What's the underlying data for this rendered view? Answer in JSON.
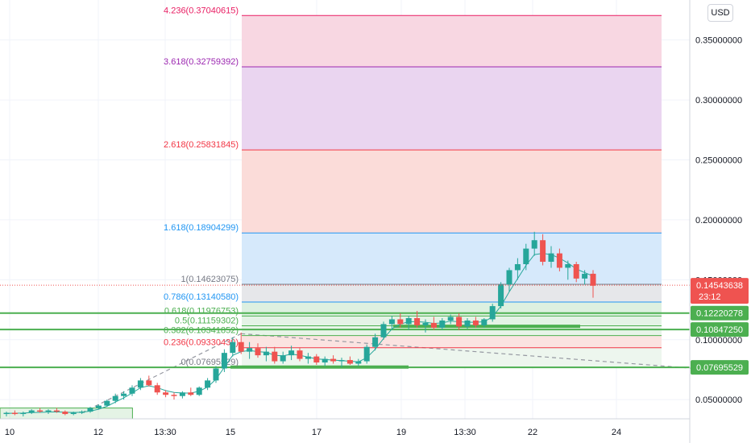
{
  "currency": "USD",
  "chart_data": {
    "type": "candlestick",
    "price_axis": {
      "ylim": [
        0.034,
        0.38
      ],
      "ticks": [
        "0.35000000",
        "0.30000000",
        "0.25000000",
        "0.20000000",
        "0.15000000",
        "0.10000000",
        "0.05000000"
      ],
      "tick_values": [
        0.35,
        0.3,
        0.25,
        0.2,
        0.15,
        0.1,
        0.05
      ]
    },
    "time_axis": {
      "labels": [
        "10",
        "12",
        "13:30",
        "15",
        "17",
        "19",
        "13:30",
        "22",
        "24"
      ]
    },
    "current_price": {
      "price": "0.14543638",
      "countdown": "23:12",
      "value": 0.14543638,
      "color": "#ef5350"
    },
    "horizontal_levels": [
      {
        "label": "0.12220278",
        "value": 0.12220278
      },
      {
        "label": "0.10847250",
        "value": 0.1084725
      },
      {
        "label": "0.07695529",
        "value": 0.07695529
      }
    ],
    "fibonacci": [
      {
        "label": "4.236(0.37040615)",
        "value": 0.37040615,
        "color": "#e91e63"
      },
      {
        "label": "3.618(0.32759392)",
        "value": 0.32759392,
        "color": "#9c27b0"
      },
      {
        "label": "2.618(0.25831845)",
        "value": 0.25831845,
        "color": "#f23645"
      },
      {
        "label": "1.618(0.18904299)",
        "value": 0.18904299,
        "color": "#2196f3"
      },
      {
        "label": "1(0.14623075)",
        "value": 0.14623075,
        "color": "#787b86"
      },
      {
        "label": "0.786(0.13140580)",
        "value": 0.1314058,
        "color": "#2196f3"
      },
      {
        "label": "0.618(0.11976753)",
        "value": 0.11976753,
        "color": "#4caf50"
      },
      {
        "label": "0.5(0.11159302)",
        "value": 0.11159302,
        "color": "#4caf50"
      },
      {
        "label": "0.382(0.10341852)",
        "value": 0.10341852,
        "color": "#4caf50"
      },
      {
        "label": "0.236(0.09330430)",
        "value": 0.0933043,
        "color": "#f23645"
      },
      {
        "label": "0(0.07695529)",
        "value": 0.07695529,
        "color": "#787b86"
      }
    ],
    "fill_colors": {
      "4.236": "#f8d7e2",
      "3.618": "#ead5f0",
      "2.618": "#fbdcd9",
      "1.618": "#d6e9fb",
      "1": "#e6e7ea",
      "0.786": "#ddf0e0",
      "0.618": "#e4f3e6",
      "0.5": "#e7f4e8",
      "0.382": "#fbe3e1",
      "0.236": "#edf6ee"
    },
    "candles": [
      [
        0.038,
        0.04,
        0.036,
        0.039
      ],
      [
        0.039,
        0.041,
        0.037,
        0.038
      ],
      [
        0.038,
        0.04,
        0.036,
        0.039
      ],
      [
        0.039,
        0.042,
        0.038,
        0.041
      ],
      [
        0.041,
        0.043,
        0.039,
        0.04
      ],
      [
        0.04,
        0.042,
        0.038,
        0.041
      ],
      [
        0.041,
        0.043,
        0.039,
        0.04
      ],
      [
        0.04,
        0.041,
        0.037,
        0.038
      ],
      [
        0.038,
        0.04,
        0.037,
        0.039
      ],
      [
        0.039,
        0.041,
        0.038,
        0.04
      ],
      [
        0.04,
        0.044,
        0.039,
        0.043
      ],
      [
        0.043,
        0.046,
        0.042,
        0.045
      ],
      [
        0.045,
        0.05,
        0.044,
        0.049
      ],
      [
        0.049,
        0.055,
        0.047,
        0.053
      ],
      [
        0.053,
        0.057,
        0.05,
        0.055
      ],
      [
        0.055,
        0.062,
        0.053,
        0.06
      ],
      [
        0.06,
        0.068,
        0.058,
        0.066
      ],
      [
        0.066,
        0.07,
        0.061,
        0.062
      ],
      [
        0.062,
        0.064,
        0.054,
        0.056
      ],
      [
        0.056,
        0.058,
        0.052,
        0.054
      ],
      [
        0.054,
        0.056,
        0.05,
        0.053
      ],
      [
        0.053,
        0.057,
        0.051,
        0.056
      ],
      [
        0.056,
        0.06,
        0.053,
        0.054
      ],
      [
        0.054,
        0.061,
        0.053,
        0.06
      ],
      [
        0.06,
        0.068,
        0.058,
        0.066
      ],
      [
        0.066,
        0.078,
        0.064,
        0.076
      ],
      [
        0.076,
        0.092,
        0.073,
        0.089
      ],
      [
        0.089,
        0.102,
        0.086,
        0.098
      ],
      [
        0.098,
        0.106,
        0.088,
        0.09
      ],
      [
        0.09,
        0.098,
        0.084,
        0.093
      ],
      [
        0.093,
        0.097,
        0.085,
        0.087
      ],
      [
        0.087,
        0.094,
        0.082,
        0.09
      ],
      [
        0.09,
        0.094,
        0.08,
        0.082
      ],
      [
        0.082,
        0.09,
        0.08,
        0.087
      ],
      [
        0.087,
        0.095,
        0.083,
        0.091
      ],
      [
        0.091,
        0.093,
        0.082,
        0.084
      ],
      [
        0.084,
        0.089,
        0.08,
        0.086
      ],
      [
        0.086,
        0.088,
        0.079,
        0.081
      ],
      [
        0.081,
        0.086,
        0.078,
        0.084
      ],
      [
        0.084,
        0.087,
        0.08,
        0.082
      ],
      [
        0.082,
        0.085,
        0.077,
        0.083
      ],
      [
        0.083,
        0.086,
        0.079,
        0.08
      ],
      [
        0.08,
        0.084,
        0.078,
        0.082
      ],
      [
        0.082,
        0.096,
        0.08,
        0.094
      ],
      [
        0.094,
        0.105,
        0.091,
        0.102
      ],
      [
        0.102,
        0.115,
        0.1,
        0.113
      ],
      [
        0.113,
        0.12,
        0.108,
        0.117
      ],
      [
        0.117,
        0.122,
        0.11,
        0.113
      ],
      [
        0.113,
        0.12,
        0.108,
        0.118
      ],
      [
        0.118,
        0.124,
        0.11,
        0.112
      ],
      [
        0.112,
        0.117,
        0.106,
        0.114
      ],
      [
        0.114,
        0.119,
        0.108,
        0.11
      ],
      [
        0.11,
        0.118,
        0.108,
        0.116
      ],
      [
        0.116,
        0.121,
        0.113,
        0.119
      ],
      [
        0.119,
        0.122,
        0.108,
        0.111
      ],
      [
        0.111,
        0.118,
        0.109,
        0.116
      ],
      [
        0.116,
        0.119,
        0.11,
        0.112
      ],
      [
        0.112,
        0.118,
        0.11,
        0.117
      ],
      [
        0.117,
        0.13,
        0.115,
        0.128
      ],
      [
        0.128,
        0.148,
        0.126,
        0.146
      ],
      [
        0.146,
        0.16,
        0.14,
        0.158
      ],
      [
        0.158,
        0.168,
        0.15,
        0.163
      ],
      [
        0.163,
        0.18,
        0.158,
        0.176
      ],
      [
        0.176,
        0.19,
        0.17,
        0.183
      ],
      [
        0.183,
        0.188,
        0.162,
        0.165
      ],
      [
        0.165,
        0.178,
        0.16,
        0.172
      ],
      [
        0.172,
        0.176,
        0.157,
        0.16
      ],
      [
        0.16,
        0.166,
        0.15,
        0.163
      ],
      [
        0.163,
        0.165,
        0.148,
        0.151
      ],
      [
        0.151,
        0.158,
        0.146,
        0.155
      ],
      [
        0.155,
        0.158,
        0.135,
        0.145
      ]
    ],
    "moving_average": [
      0.0385,
      0.0387,
      0.0388,
      0.0392,
      0.0394,
      0.0396,
      0.0398,
      0.0395,
      0.0393,
      0.0395,
      0.0405,
      0.042,
      0.0445,
      0.048,
      0.0515,
      0.0555,
      0.06,
      0.0615,
      0.06,
      0.0575,
      0.056,
      0.0555,
      0.0555,
      0.057,
      0.0605,
      0.067,
      0.077,
      0.087,
      0.09,
      0.091,
      0.09,
      0.0895,
      0.087,
      0.0865,
      0.088,
      0.087,
      0.0855,
      0.084,
      0.0835,
      0.083,
      0.0825,
      0.082,
      0.0815,
      0.085,
      0.092,
      0.101,
      0.109,
      0.113,
      0.115,
      0.115,
      0.1145,
      0.1135,
      0.114,
      0.1155,
      0.115,
      0.1145,
      0.1145,
      0.115,
      0.119,
      0.128,
      0.14,
      0.151,
      0.162,
      0.171,
      0.172,
      0.171,
      0.168,
      0.164,
      0.159,
      0.156,
      0.153
    ],
    "trend_lines": [
      {
        "from": [
          9,
          0.039
        ],
        "to": [
          28,
          0.105
        ]
      },
      {
        "from": [
          28,
          0.105
        ],
        "to": [
          85,
          0.0745
        ]
      }
    ],
    "zones": [
      {
        "from": 0,
        "to": 11,
        "low": 0.034,
        "high": 0.043
      }
    ]
  }
}
